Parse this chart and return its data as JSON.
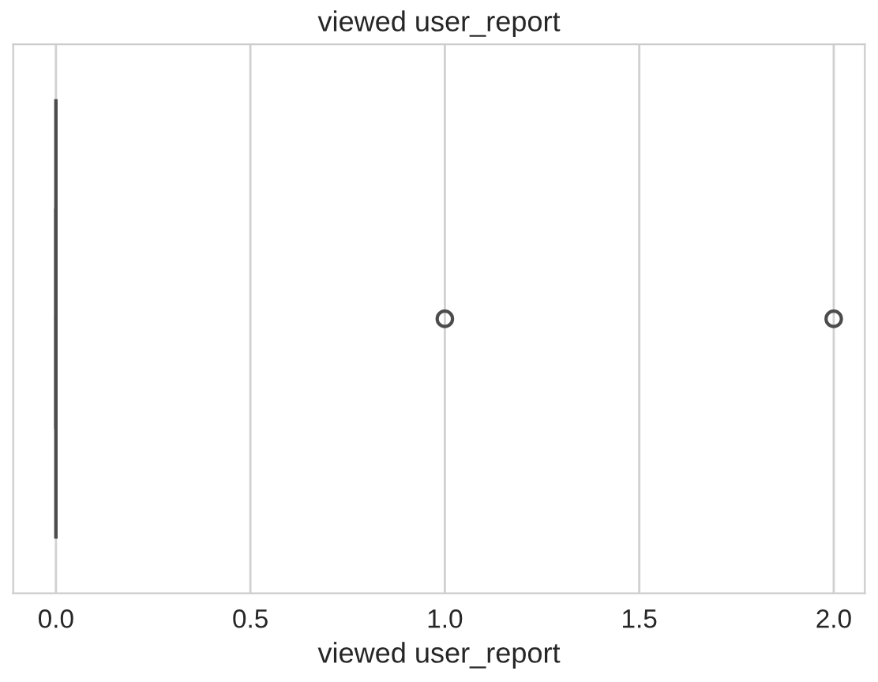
{
  "chart_data": {
    "type": "box",
    "title": "viewed user_report",
    "xlabel": "viewed user_report",
    "orientation": "horizontal",
    "categories": [
      null
    ],
    "boxes": [
      {
        "low": 0,
        "q1": 0,
        "median": 0,
        "q3": 0,
        "high": 0,
        "outliers": [
          1.0,
          2.0
        ]
      }
    ],
    "color": "#4c4c4c",
    "xlim": [
      -0.11,
      2.08
    ],
    "xticks": [
      {
        "value": 0,
        "label": "0.0"
      },
      {
        "value": 0.5,
        "label": "0.5"
      },
      {
        "value": 1.0,
        "label": "1.0"
      },
      {
        "value": 1.5,
        "label": "1.5"
      },
      {
        "value": 2.0,
        "label": "2.0"
      }
    ],
    "grid": "x",
    "tick_labels": "x"
  }
}
